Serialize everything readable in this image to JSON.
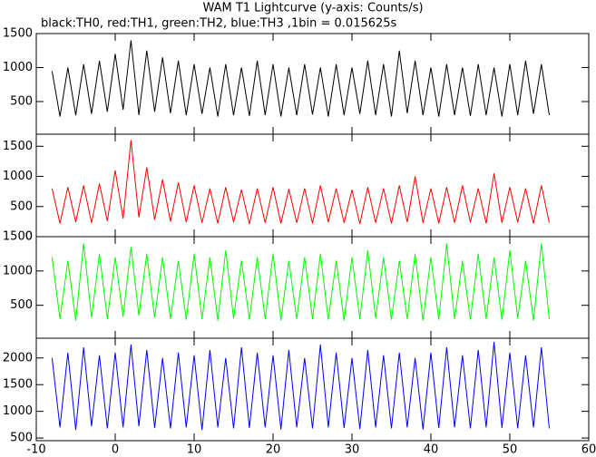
{
  "chart_data": {
    "type": "line",
    "title": "WAM T1 Lightcurve (y-axis: Counts/s)",
    "subtitle": "black:TH0, red:TH1, green:TH2, blue:TH3 ,1bin = 0.015625s",
    "xlim": [
      -10,
      60
    ],
    "xticks": [
      -10,
      0,
      10,
      20,
      30,
      40,
      50,
      60
    ],
    "x": [
      -8,
      -7,
      -6,
      -5,
      -4,
      -3,
      -2,
      -1,
      0,
      1,
      2,
      3,
      4,
      5,
      6,
      7,
      8,
      9,
      10,
      11,
      12,
      13,
      14,
      15,
      16,
      17,
      18,
      19,
      20,
      21,
      22,
      23,
      24,
      25,
      26,
      27,
      28,
      29,
      30,
      31,
      32,
      33,
      34,
      35,
      36,
      37,
      38,
      39,
      40,
      41,
      42,
      43,
      44,
      45,
      46,
      47,
      48,
      49,
      50,
      51,
      52,
      53,
      54,
      55
    ],
    "panels": [
      {
        "color": "#000000",
        "ylim": [
          20,
          1500
        ],
        "yticks": [
          500,
          1000,
          1500
        ],
        "values": [
          950,
          280,
          1000,
          300,
          1050,
          320,
          1100,
          350,
          1200,
          380,
          1400,
          300,
          1250,
          350,
          1150,
          330,
          1100,
          300,
          1050,
          320,
          1000,
          280,
          1050,
          300,
          1000,
          290,
          1100,
          300,
          1050,
          280,
          1000,
          300,
          1050,
          310,
          1000,
          280,
          1050,
          300,
          1000,
          320,
          1100,
          300,
          1050,
          280,
          1250,
          330,
          1100,
          300,
          1000,
          280,
          1050,
          300,
          1000,
          290,
          1050,
          300,
          1000,
          280,
          1050,
          300,
          1100,
          320,
          1050,
          300
        ]
      },
      {
        "color": "#ff0000",
        "ylim": [
          0,
          1700
        ],
        "yticks": [
          0,
          500,
          1000,
          1500
        ],
        "values": [
          800,
          220,
          820,
          240,
          850,
          230,
          880,
          260,
          1100,
          300,
          1600,
          320,
          1150,
          280,
          950,
          250,
          900,
          240,
          850,
          230,
          800,
          220,
          820,
          240,
          780,
          210,
          800,
          230,
          820,
          220,
          790,
          230,
          800,
          220,
          850,
          240,
          800,
          230,
          780,
          210,
          820,
          230,
          800,
          220,
          850,
          240,
          1000,
          230,
          800,
          220,
          820,
          230,
          850,
          240,
          800,
          220,
          1050,
          230,
          820,
          240,
          800,
          220,
          850,
          230
        ]
      },
      {
        "color": "#00ff00",
        "ylim": [
          20,
          1500
        ],
        "yticks": [
          500,
          1000,
          1500
        ],
        "values": [
          1200,
          300,
          1150,
          280,
          1400,
          320,
          1250,
          300,
          1200,
          330,
          1350,
          350,
          1250,
          320,
          1200,
          300,
          1150,
          290,
          1250,
          300,
          1200,
          280,
          1300,
          310,
          1150,
          290,
          1200,
          300,
          1250,
          280,
          1150,
          300,
          1200,
          300,
          1250,
          290,
          1150,
          280,
          1200,
          300,
          1300,
          310,
          1200,
          290,
          1150,
          300,
          1250,
          280,
          1200,
          290,
          1400,
          300,
          1150,
          290,
          1250,
          300,
          1200,
          290,
          1300,
          310,
          1150,
          280,
          1400,
          300
        ]
      },
      {
        "color": "#0000ff",
        "ylim": [
          450,
          2370
        ],
        "yticks": [
          500,
          1000,
          1500,
          2000
        ],
        "values": [
          2000,
          700,
          2100,
          650,
          2200,
          720,
          2050,
          680,
          2100,
          700,
          2250,
          720,
          2150,
          690,
          2000,
          680,
          2100,
          700,
          2050,
          650,
          2150,
          700,
          2000,
          680,
          2200,
          690,
          2100,
          700,
          2050,
          660,
          2150,
          700,
          2000,
          680,
          2250,
          700,
          2100,
          690,
          2000,
          670,
          2150,
          700,
          2050,
          680,
          2100,
          700,
          2000,
          660,
          2100,
          690,
          2200,
          700,
          2050,
          680,
          2150,
          700,
          2300,
          690,
          2100,
          680,
          2050,
          700,
          2200,
          680
        ]
      }
    ]
  }
}
